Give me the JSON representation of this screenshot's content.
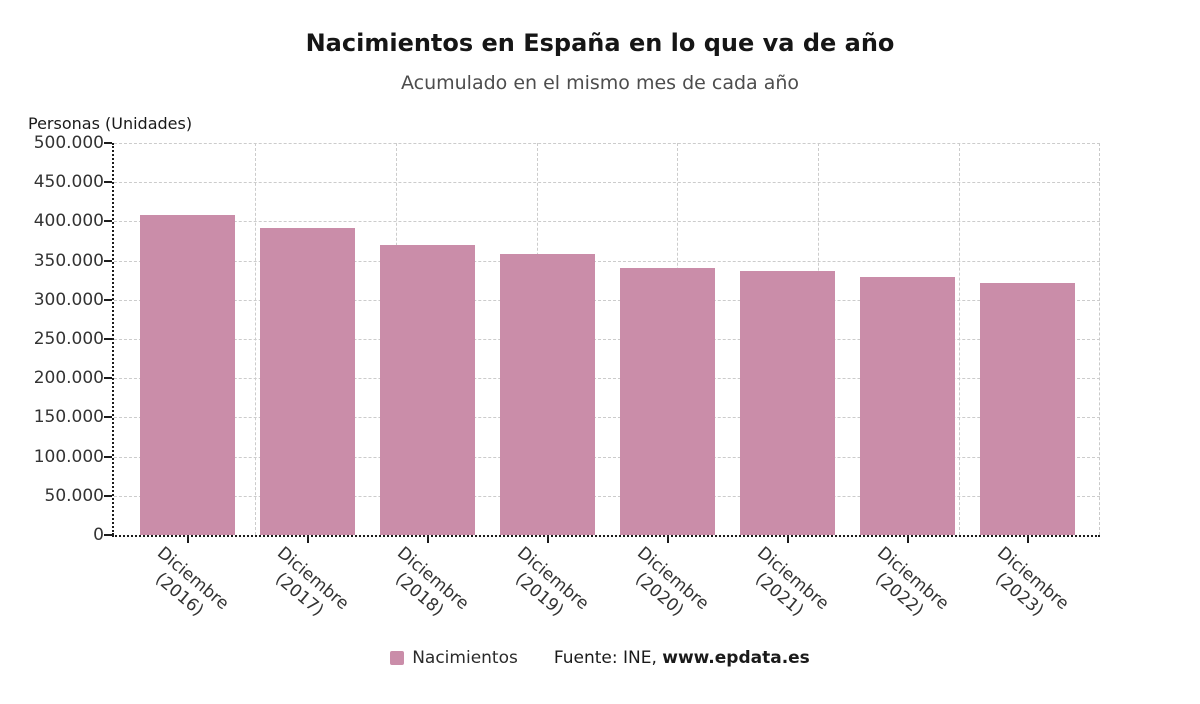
{
  "chart_data": {
    "type": "bar",
    "title": "Nacimientos en España en lo que va de año",
    "subtitle": "Acumulado en el mismo mes de cada año",
    "y_axis_title": "Personas (Unidades)",
    "ylim": [
      0,
      500000
    ],
    "grid": "dashed",
    "y_ticks": [
      {
        "value": 0,
        "label": "0"
      },
      {
        "value": 50000,
        "label": "50.000"
      },
      {
        "value": 100000,
        "label": "100.000"
      },
      {
        "value": 150000,
        "label": "150.000"
      },
      {
        "value": 200000,
        "label": "200.000"
      },
      {
        "value": 250000,
        "label": "250.000"
      },
      {
        "value": 300000,
        "label": "300.000"
      },
      {
        "value": 350000,
        "label": "350.000"
      },
      {
        "value": 400000,
        "label": "400.000"
      },
      {
        "value": 450000,
        "label": "450.000"
      },
      {
        "value": 500000,
        "label": "500.000"
      }
    ],
    "categories": [
      {
        "line1": "Diciembre",
        "line2": "(2016)"
      },
      {
        "line1": "Diciembre",
        "line2": "(2017)"
      },
      {
        "line1": "Diciembre",
        "line2": "(2018)"
      },
      {
        "line1": "Diciembre",
        "line2": "(2019)"
      },
      {
        "line1": "Diciembre",
        "line2": "(2020)"
      },
      {
        "line1": "Diciembre",
        "line2": "(2021)"
      },
      {
        "line1": "Diciembre",
        "line2": "(2022)"
      },
      {
        "line1": "Diciembre",
        "line2": "(2023)"
      }
    ],
    "series": [
      {
        "name": "Nacimientos",
        "color": "#ca8da9",
        "values": [
          408000,
          391000,
          370000,
          358000,
          340000,
          337000,
          329000,
          322000
        ]
      }
    ],
    "legend": {
      "position": "bottom",
      "items": [
        {
          "label": "Nacimientos",
          "color": "#ca8da9"
        }
      ]
    },
    "source": {
      "prefix": "Fuente: INE, ",
      "link": "www.epdata.es"
    }
  },
  "colors": {
    "bar": "#ca8da9",
    "grid": "#cccccc",
    "axis": "#1c1c1c",
    "title": "#161616",
    "subtitle": "#4d4d4d",
    "tick_label": "#333333"
  }
}
